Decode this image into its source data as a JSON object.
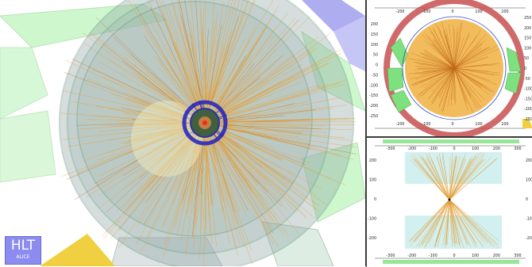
{
  "logo": {
    "title": "HLT",
    "subtitle": "ALICE"
  },
  "rphi_view": {
    "top_ticks": [
      "-200",
      "-100",
      "0",
      "100",
      "200"
    ],
    "bottom_ticks": [
      "-200",
      "-100",
      "0",
      "100",
      "200"
    ],
    "left_ticks": [
      "200",
      "150",
      "100",
      "50",
      "0",
      "-50",
      "-100",
      "-150",
      "-200",
      "-250"
    ],
    "right_ticks": [
      "250",
      "200",
      "150",
      "100",
      "50",
      "0",
      "-50",
      "-100",
      "-150",
      "-200",
      "-250"
    ]
  },
  "rhoz_view": {
    "top_ticks": [
      "-300",
      "-200",
      "-100",
      "0",
      "100",
      "200",
      "300"
    ],
    "bottom_ticks": [
      "-300",
      "-200",
      "-100",
      "0",
      "100",
      "200",
      "300"
    ],
    "left_ticks": [
      "200",
      "100",
      "0",
      "-100",
      "-200"
    ],
    "right_ticks": [
      "200",
      "100",
      "0",
      "-100",
      "-200"
    ]
  },
  "colors": {
    "tracks": "#e8a030",
    "tpc_green": "#7ee07e",
    "emcal_red": "#c85050",
    "detector_gray": "#8aa0a0",
    "its_blue": "#2020c0",
    "logo_bg": "#8c8cf0"
  }
}
